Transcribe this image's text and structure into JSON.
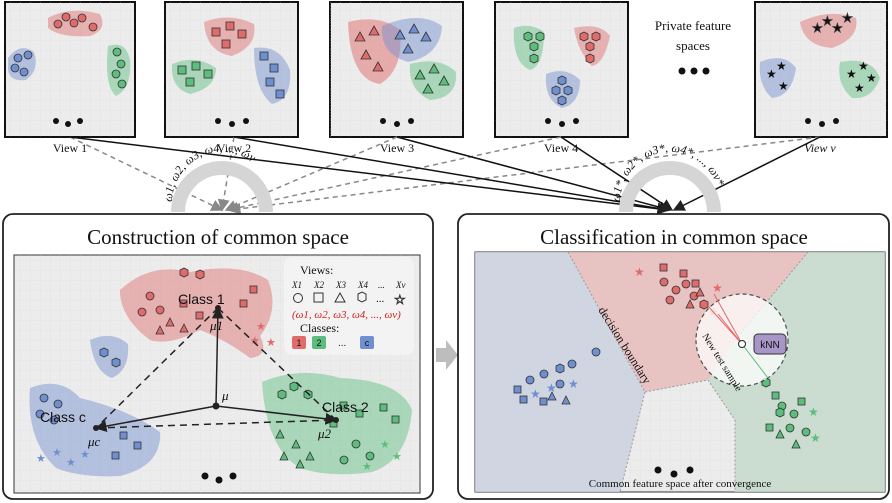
{
  "views": [
    {
      "label": "View 1"
    },
    {
      "label": "View 2"
    },
    {
      "label": "View 3"
    },
    {
      "label": "View 4"
    },
    {
      "label": "View v"
    }
  ],
  "private_caption_line1": "Private feature",
  "private_caption_line2": "spaces",
  "weights_left": "ω1, ω2, ω3, ω4, ..., ωv",
  "weights_right": "ω1*, ω2*, ω3*, ω4*, ..., ωv*",
  "left_panel": {
    "title": "Construction of common space",
    "class1": "Class 1",
    "class2": "Class 2",
    "classc": "Class c",
    "mu": "μ",
    "mu1": "μ1",
    "mu2": "μ2",
    "muc": "μc",
    "legend": {
      "views_title": "Views:",
      "view_keys": [
        "X1",
        "X2",
        "X3",
        "X4",
        "...",
        "Xv"
      ],
      "weights": "(ω1, ω2, ω3, ω4, ..., ωv)",
      "classes_title": "Classes:",
      "class_keys": [
        "1",
        "2",
        "...",
        "c"
      ]
    }
  },
  "right_panel": {
    "title": "Classification in common space",
    "decision_boundary": "decision boundary",
    "new_sample": "New test sample",
    "knn": "kNN",
    "caption": "Common feature space after convergence"
  },
  "colors": {
    "red": "#e06b6b",
    "green": "#5cbd7d",
    "blue": "#6f8fd0",
    "weight_red": "#d62020"
  }
}
